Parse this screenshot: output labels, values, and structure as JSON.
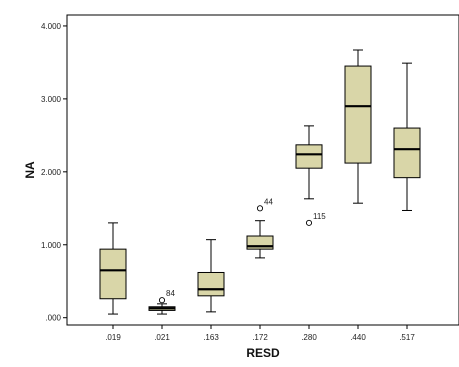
{
  "chart_data": {
    "type": "boxplot",
    "title": "",
    "xlabel": "RESD",
    "ylabel": "NA",
    "categories": [
      ".019",
      ".021",
      ".163",
      ".172",
      ".280",
      ".440",
      ".517"
    ],
    "y_ticks": [
      ".000",
      "1.000",
      "2.000",
      "3.000",
      "4.000"
    ],
    "ylim": [
      -0.1,
      4.15
    ],
    "grid": false,
    "box_color": "#d9d6a8",
    "boxes": [
      {
        "category": ".019",
        "min": 0.05,
        "q1": 0.26,
        "median": 0.65,
        "q3": 0.94,
        "max": 1.3,
        "outliers": []
      },
      {
        "category": ".021",
        "min": 0.05,
        "q1": 0.1,
        "median": 0.13,
        "q3": 0.15,
        "max": 0.19,
        "outliers": [
          {
            "value": 0.24,
            "label": "84"
          }
        ]
      },
      {
        "category": ".163",
        "min": 0.08,
        "q1": 0.3,
        "median": 0.39,
        "q3": 0.62,
        "max": 1.07,
        "outliers": []
      },
      {
        "category": ".172",
        "min": 0.82,
        "q1": 0.94,
        "median": 0.98,
        "q3": 1.12,
        "max": 1.33,
        "outliers": [
          {
            "value": 1.5,
            "label": "44"
          }
        ]
      },
      {
        "category": ".280",
        "min": 1.63,
        "q1": 2.05,
        "median": 2.24,
        "q3": 2.37,
        "max": 2.63,
        "outliers": [
          {
            "value": 1.3,
            "label": "115"
          }
        ]
      },
      {
        "category": ".440",
        "min": 1.57,
        "q1": 2.12,
        "median": 2.9,
        "q3": 3.45,
        "max": 3.67,
        "outliers": []
      },
      {
        "category": ".517",
        "min": 1.47,
        "q1": 1.92,
        "median": 2.31,
        "q3": 2.6,
        "max": 3.49,
        "outliers": []
      }
    ]
  }
}
